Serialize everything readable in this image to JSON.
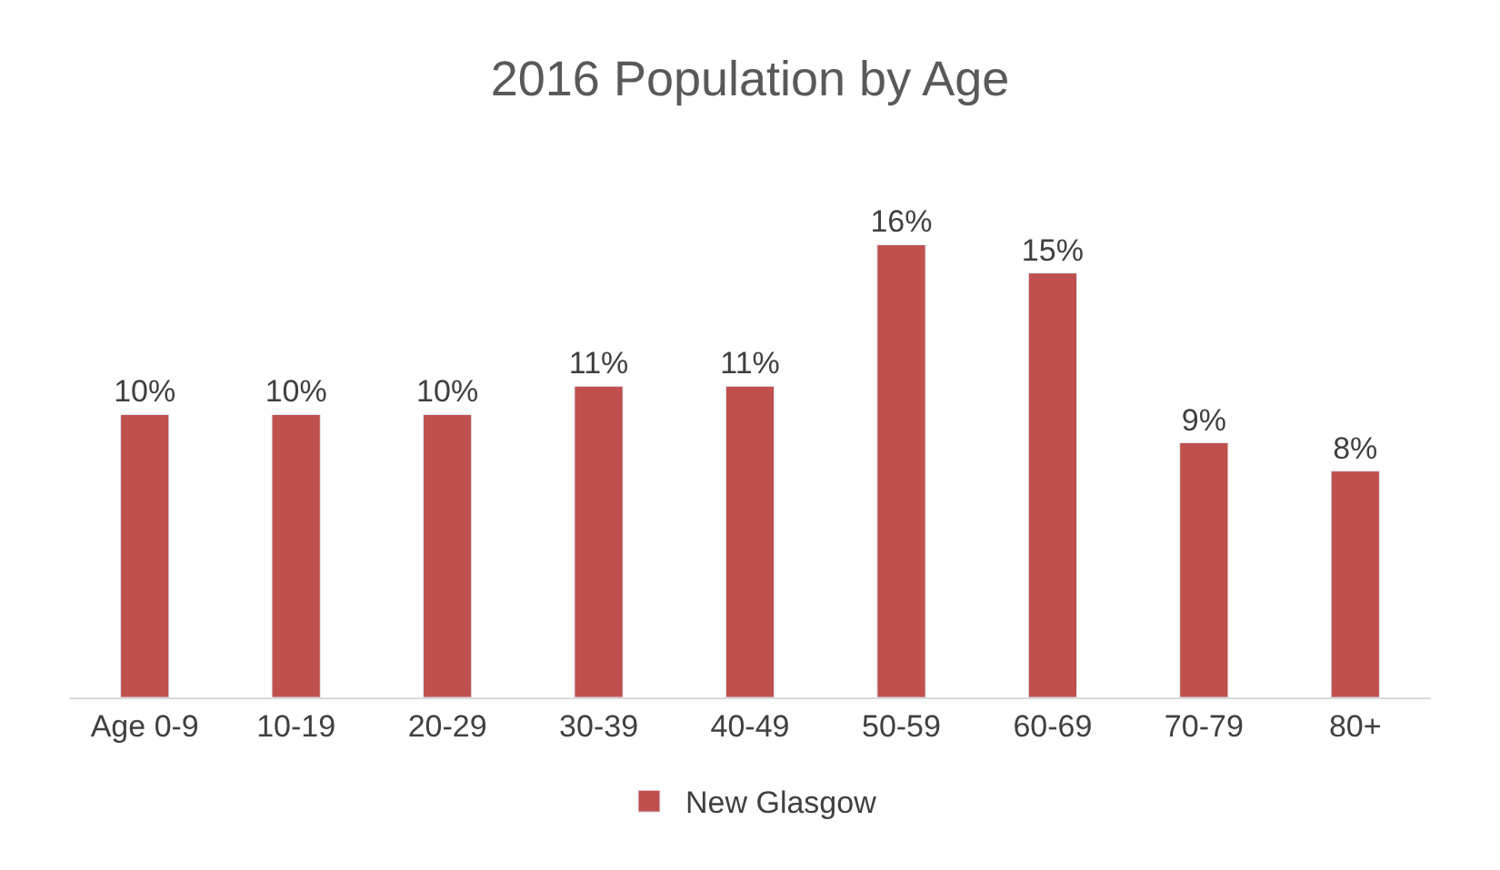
{
  "chart_data": {
    "type": "bar",
    "title": "2016 Population by Age",
    "categories": [
      "Age 0-9",
      "10-19",
      "20-29",
      "30-39",
      "40-49",
      "50-59",
      "60-69",
      "70-79",
      "80+"
    ],
    "series": [
      {
        "name": "New Glasgow",
        "color": "#c0504d",
        "values": [
          10,
          10,
          10,
          11,
          11,
          16,
          15,
          9,
          8
        ],
        "value_labels": [
          "10%",
          "10%",
          "10%",
          "11%",
          "11%",
          "16%",
          "15%",
          "9%",
          "8%"
        ]
      }
    ],
    "legend": "bottom"
  }
}
